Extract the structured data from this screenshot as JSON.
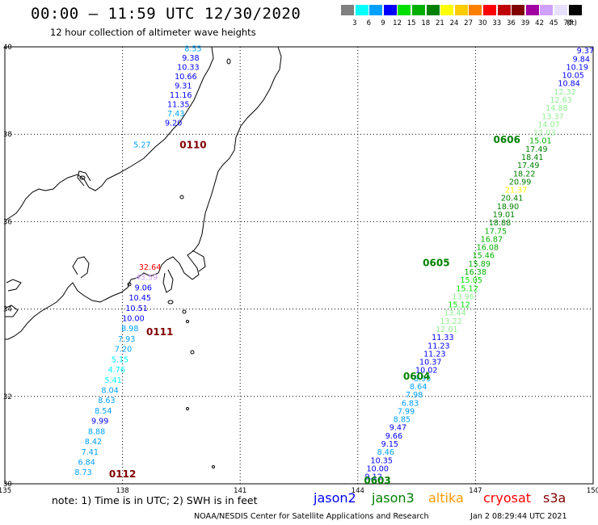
{
  "header": {
    "title": "00:00 – 11:59 UTC 12/30/2020",
    "subtitle": "12 hour collection of altimeter wave heights"
  },
  "colorbar": {
    "unit_label": "(ft)",
    "labels": [
      "3",
      "6",
      "9",
      "12",
      "15",
      "18",
      "21",
      "24",
      "27",
      "30",
      "33",
      "36",
      "39",
      "42",
      "45",
      "70"
    ],
    "colors": [
      "#808080",
      "#00ffff",
      "#00a0ff",
      "#0000ff",
      "#00e000",
      "#00b000",
      "#008000",
      "#ffff00",
      "#ffcc00",
      "#ff8000",
      "#ff0000",
      "#c00000",
      "#800000",
      "#a000a0",
      "#d0a0ff",
      "#e8e0ff",
      "#000000"
    ]
  },
  "axes": {
    "x_ticks": [
      "135",
      "138",
      "141",
      "144",
      "147",
      "150"
    ],
    "y_ticks": [
      "40",
      "38",
      "36",
      "34",
      "32",
      "30"
    ],
    "lon_range": [
      135,
      150
    ],
    "lat_range": [
      30,
      40
    ]
  },
  "tracks": [
    {
      "name": "jason2-west-track",
      "values": [
        {
          "v": "8.55",
          "c": "#00a0ff"
        },
        {
          "v": "9.38",
          "c": "#0000ff"
        },
        {
          "v": "10.33",
          "c": "#0000ff"
        },
        {
          "v": "10.66",
          "c": "#0000ff"
        },
        {
          "v": "9.31",
          "c": "#0000ff"
        },
        {
          "v": "11.16",
          "c": "#0000ff"
        },
        {
          "v": "11.35",
          "c": "#0000ff"
        },
        {
          "v": "7.43",
          "c": "#00a0ff"
        },
        {
          "v": "9.20",
          "c": "#0000ff"
        }
      ],
      "start_lon": 139.8,
      "start_lat": 39.9,
      "end_lon": 139.3,
      "end_lat": 38.2
    },
    {
      "name": "southwest-track",
      "values": [
        {
          "v": "32.64",
          "c": "#ff0000"
        },
        {
          "v": "43.59",
          "c": "#d0a0ff"
        },
        {
          "v": "9.06",
          "c": "#0000ff"
        },
        {
          "v": "10.45",
          "c": "#0000ff"
        },
        {
          "v": "10.51",
          "c": "#0000ff"
        },
        {
          "v": "10.00",
          "c": "#0000ff"
        },
        {
          "v": "8.98",
          "c": "#00a0ff"
        },
        {
          "v": "7.93",
          "c": "#00a0ff"
        },
        {
          "v": "7.20",
          "c": "#00a0ff"
        },
        {
          "v": "5.15",
          "c": "#00ffff"
        },
        {
          "v": "4.76",
          "c": "#00ffff"
        },
        {
          "v": "5.41",
          "c": "#00ffff"
        },
        {
          "v": "8.04",
          "c": "#00a0ff"
        },
        {
          "v": "8.63",
          "c": "#00a0ff"
        },
        {
          "v": "8.54",
          "c": "#00a0ff"
        },
        {
          "v": "9.99",
          "c": "#0000ff"
        },
        {
          "v": "8.88",
          "c": "#00a0ff"
        },
        {
          "v": "8.42",
          "c": "#00a0ff"
        },
        {
          "v": "7.41",
          "c": "#00a0ff"
        },
        {
          "v": "6.84",
          "c": "#00a0ff"
        },
        {
          "v": "8.73",
          "c": "#00a0ff"
        }
      ],
      "start_lon": 138.7,
      "start_lat": 34.9,
      "end_lon": 137.0,
      "end_lat": 30.2
    },
    {
      "name": "jason3-east-track",
      "values": [
        {
          "v": "9.37",
          "c": "#0000ff"
        },
        {
          "v": "9.84",
          "c": "#0000ff"
        },
        {
          "v": "10.19",
          "c": "#0000ff"
        },
        {
          "v": "10.05",
          "c": "#0000ff"
        },
        {
          "v": "10.84",
          "c": "#0000ff"
        },
        {
          "v": "12.32",
          "c": "#90ee90"
        },
        {
          "v": "12.63",
          "c": "#90ee90"
        },
        {
          "v": "14.88",
          "c": "#90ee90"
        },
        {
          "v": "13.37",
          "c": "#90ee90"
        },
        {
          "v": "14.07",
          "c": "#90ee90"
        },
        {
          "v": "12.03",
          "c": "#90ee90"
        },
        {
          "v": "15.01",
          "c": "#00b000"
        },
        {
          "v": "17.49",
          "c": "#008000"
        },
        {
          "v": "18.41",
          "c": "#008000"
        },
        {
          "v": "17.49",
          "c": "#008000"
        },
        {
          "v": "18.22",
          "c": "#008000"
        },
        {
          "v": "20.99",
          "c": "#008000"
        },
        {
          "v": "21.37",
          "c": "#ffff00"
        },
        {
          "v": "20.41",
          "c": "#008000"
        },
        {
          "v": "18.90",
          "c": "#008000"
        },
        {
          "v": "19.01",
          "c": "#008000"
        },
        {
          "v": "18.88",
          "c": "#008000"
        },
        {
          "v": "17.75",
          "c": "#00b000"
        },
        {
          "v": "16.87",
          "c": "#00b000"
        },
        {
          "v": "16.08",
          "c": "#00b000"
        },
        {
          "v": "15.46",
          "c": "#00b000"
        },
        {
          "v": "15.89",
          "c": "#00b000"
        },
        {
          "v": "16.38",
          "c": "#00b000"
        },
        {
          "v": "15.05",
          "c": "#00e000"
        },
        {
          "v": "15.12",
          "c": "#00e000"
        },
        {
          "v": "13.96",
          "c": "#90ee90"
        },
        {
          "v": "15.12",
          "c": "#00e000"
        },
        {
          "v": "13.44",
          "c": "#90ee90"
        },
        {
          "v": "13.22",
          "c": "#90ee90"
        },
        {
          "v": "12.01",
          "c": "#90ee90"
        },
        {
          "v": "11.33",
          "c": "#0000ff"
        },
        {
          "v": "11.23",
          "c": "#0000ff"
        },
        {
          "v": "11.23",
          "c": "#0000ff"
        },
        {
          "v": "10.37",
          "c": "#0000ff"
        },
        {
          "v": "10.02",
          "c": "#0000ff"
        },
        {
          "v": "8.95",
          "c": "#00a0ff"
        },
        {
          "v": "8.64",
          "c": "#00a0ff"
        },
        {
          "v": "7.98",
          "c": "#00a0ff"
        },
        {
          "v": "6.83",
          "c": "#00a0ff"
        },
        {
          "v": "7.99",
          "c": "#00a0ff"
        },
        {
          "v": "8.85",
          "c": "#00a0ff"
        },
        {
          "v": "9.47",
          "c": "#0000ff"
        },
        {
          "v": "9.66",
          "c": "#0000ff"
        },
        {
          "v": "9.15",
          "c": "#0000ff"
        },
        {
          "v": "8.46",
          "c": "#00a0ff"
        },
        {
          "v": "10.35",
          "c": "#0000ff"
        },
        {
          "v": "10.00",
          "c": "#0000ff"
        },
        {
          "v": "9.12",
          "c": "#0000ff"
        }
      ],
      "start_lon": 149.8,
      "start_lat": 39.85,
      "end_lon": 144.4,
      "end_lat": 30.1
    },
    {
      "name": "lone-value",
      "values": [
        {
          "v": "5.27",
          "c": "#00a0ff"
        }
      ],
      "start_lon": 138.5,
      "start_lat": 37.7,
      "end_lon": 138.5,
      "end_lat": 37.7
    }
  ],
  "time_labels": [
    {
      "text": "0110",
      "color": "#800000",
      "lon": 139.8,
      "lat": 37.68
    },
    {
      "text": "0111",
      "color": "#800000",
      "lon": 138.95,
      "lat": 33.4
    },
    {
      "text": "0112",
      "color": "#800000",
      "lon": 138.0,
      "lat": 30.15
    },
    {
      "text": "0606",
      "color": "#008000",
      "lon": 147.8,
      "lat": 37.8
    },
    {
      "text": "0605",
      "color": "#008000",
      "lon": 146.0,
      "lat": 34.98
    },
    {
      "text": "0604",
      "color": "#008000",
      "lon": 145.5,
      "lat": 32.38
    },
    {
      "text": "0603",
      "color": "#008000",
      "lon": 144.5,
      "lat": 30.0
    }
  ],
  "footer": {
    "note": "note: 1) Time is in UTC; 2) SWH is in feet",
    "legend": [
      {
        "label": "jason2",
        "color": "#0000ff"
      },
      {
        "label": "jason3",
        "color": "#008000"
      },
      {
        "label": "altika",
        "color": "#ff9900"
      },
      {
        "label": "cryosat",
        "color": "#ff0000"
      },
      {
        "label": "s3a",
        "color": "#800000"
      }
    ],
    "credit": "NOAA/NESDIS Center for Satellite Applications and Research",
    "timestamp": "Jan  2 08:29:44 UTC 2021"
  }
}
